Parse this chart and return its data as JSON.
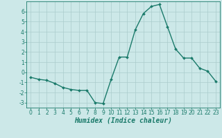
{
  "x": [
    0,
    1,
    2,
    3,
    4,
    5,
    6,
    7,
    8,
    9,
    10,
    11,
    12,
    13,
    14,
    15,
    16,
    17,
    18,
    19,
    20,
    21,
    22,
    23
  ],
  "y": [
    -0.5,
    -0.7,
    -0.8,
    -1.1,
    -1.5,
    -1.7,
    -1.8,
    -1.8,
    -3.0,
    -3.1,
    -0.7,
    1.5,
    1.5,
    4.2,
    5.8,
    6.5,
    6.7,
    4.5,
    2.3,
    1.4,
    1.4,
    0.4,
    0.1,
    -0.9
  ],
  "line_color": "#1a7a6a",
  "marker_color": "#1a7a6a",
  "bg_color": "#cce8e8",
  "grid_color": "#aacccc",
  "xlabel": "Humidex (Indice chaleur)",
  "ylim": [
    -3.5,
    7.0
  ],
  "xlim": [
    -0.5,
    23.5
  ],
  "yticks": [
    -3,
    -2,
    -1,
    0,
    1,
    2,
    3,
    4,
    5,
    6
  ],
  "xticks": [
    0,
    1,
    2,
    3,
    4,
    5,
    6,
    7,
    8,
    9,
    10,
    11,
    12,
    13,
    14,
    15,
    16,
    17,
    18,
    19,
    20,
    21,
    22,
    23
  ],
  "tick_fontsize": 5.5,
  "xlabel_fontsize": 7,
  "linewidth": 1.0,
  "markersize": 2.0
}
